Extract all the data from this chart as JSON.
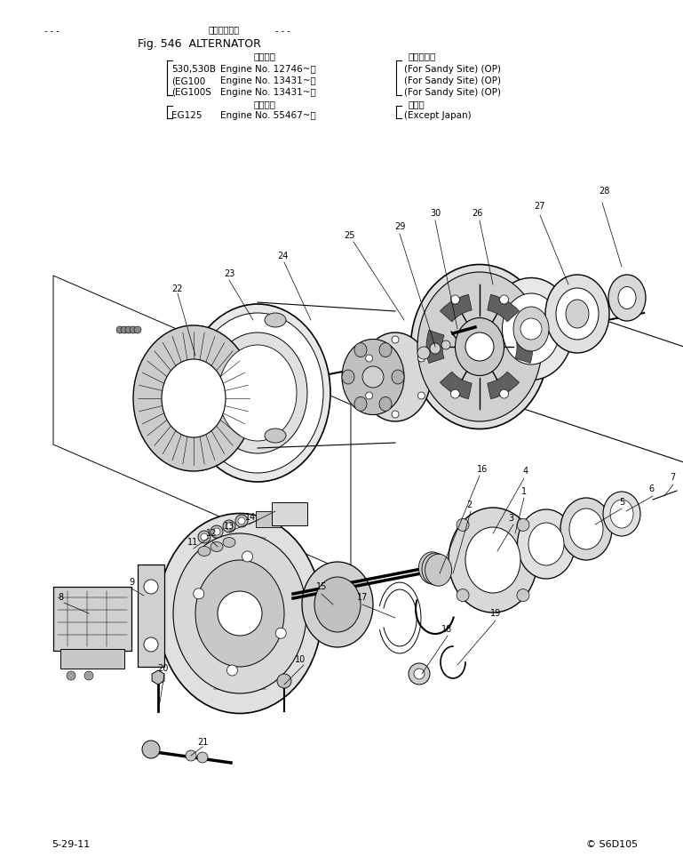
{
  "background_color": "#ffffff",
  "page_width": 7.69,
  "page_height": 9.73,
  "title_japanese": "オルタネータ",
  "title_fig": "Fig. 546  ALTERNATOR",
  "footer_left": "5-29-11",
  "footer_right": "© S6D105",
  "header": {
    "sandy_label": "適用号機",
    "sandy_col2": "砂厄地仕様",
    "rows_sandy": [
      [
        "530,530B",
        "Engine No. 12746~）",
        "(For Sandy Site) (OP)"
      ],
      [
        "(EG100",
        "Engine No. 13431~）",
        "(For Sandy Site) (OP)"
      ],
      [
        "(EG100S",
        "Engine No. 13431~）",
        "(For Sandy Site) (OP)"
      ]
    ],
    "export_label": "適用号機",
    "export_col2": "海外向",
    "rows_export": [
      [
        "EG125",
        "Engine No. 55467~）",
        "(Except Japan)"
      ]
    ]
  }
}
